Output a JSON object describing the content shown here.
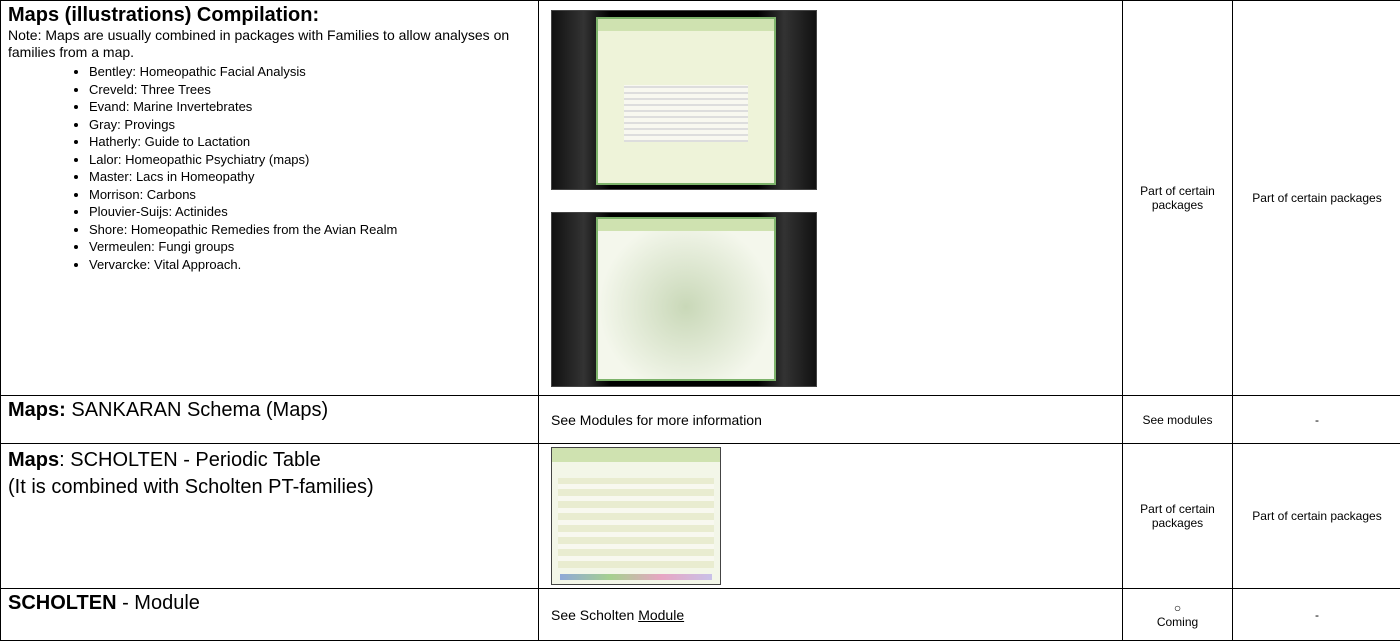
{
  "table": {
    "rows": [
      {
        "name_bold": "Maps (illustrations) Compilation:",
        "note": "Note: Maps are usually combined in packages with Families to allow analyses on families from a map.",
        "items": [
          "Bentley: Homeopathic Facial Analysis",
          "Creveld: Three Trees",
          "Evand: Marine Invertebrates",
          "Gray: Provings",
          "Hatherly: Guide to Lactation",
          "Lalor: Homeopathic Psychiatry (maps)",
          "Master: Lacs in Homeopathy",
          "Morrison: Carbons",
          "Plouvier-Suijs: Actinides",
          "Shore: Homeopathic Remedies from the Avian Realm",
          "Vermeulen: Fungi groups",
          "Vervarcke: Vital Approach."
        ],
        "availability": "Part of certain packages",
        "packages": "Part of certain packages"
      },
      {
        "name_bold": "Maps:",
        "name_rest": "SANKARAN Schema (Maps)",
        "description": "See Modules for more information",
        "availability": "See modules",
        "packages": "-"
      },
      {
        "name_bold": "Maps",
        "name_rest": ": SCHOLTEN - Periodic Table",
        "name_note": "(It is combined with Scholten PT-families)",
        "availability": "Part of certain packages",
        "packages": "Part of certain packages"
      },
      {
        "name_bold": "SCHOLTEN",
        "name_rest": "- Module",
        "description": "See Scholten",
        "description_link": "Module",
        "availability_symbol": "○",
        "availability": "Coming",
        "packages": "-"
      }
    ]
  }
}
